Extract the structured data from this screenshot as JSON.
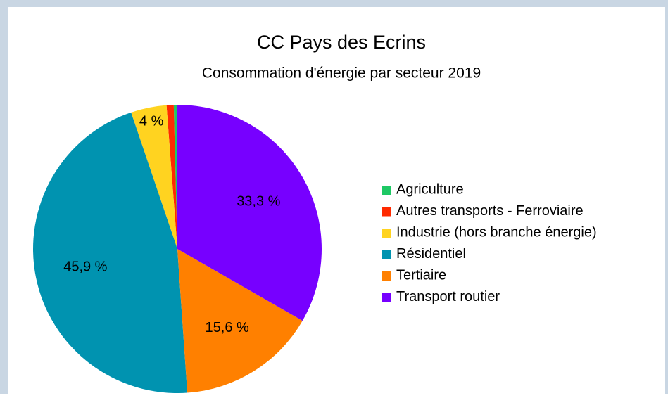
{
  "chart_data": {
    "type": "pie",
    "title": "CC Pays des Ecrins",
    "subtitle": "Consommation d'énergie par secteur 2019",
    "categories": [
      "Agriculture",
      "Autres transports - Ferroviaire",
      "Industrie (hors branche énergie)",
      "Résidentiel",
      "Tertiaire",
      "Transport routier"
    ],
    "values": [
      0.4,
      0.8,
      4,
      45.9,
      15.6,
      33.3
    ],
    "value_labels": [
      null,
      null,
      "4 %",
      "45,9 %",
      "15,6 %",
      "33,3 %"
    ],
    "colors": [
      "#1ec864",
      "#ff2a00",
      "#ffd320",
      "#0093b0",
      "#ff8000",
      "#7700ff"
    ],
    "legend": "right"
  }
}
